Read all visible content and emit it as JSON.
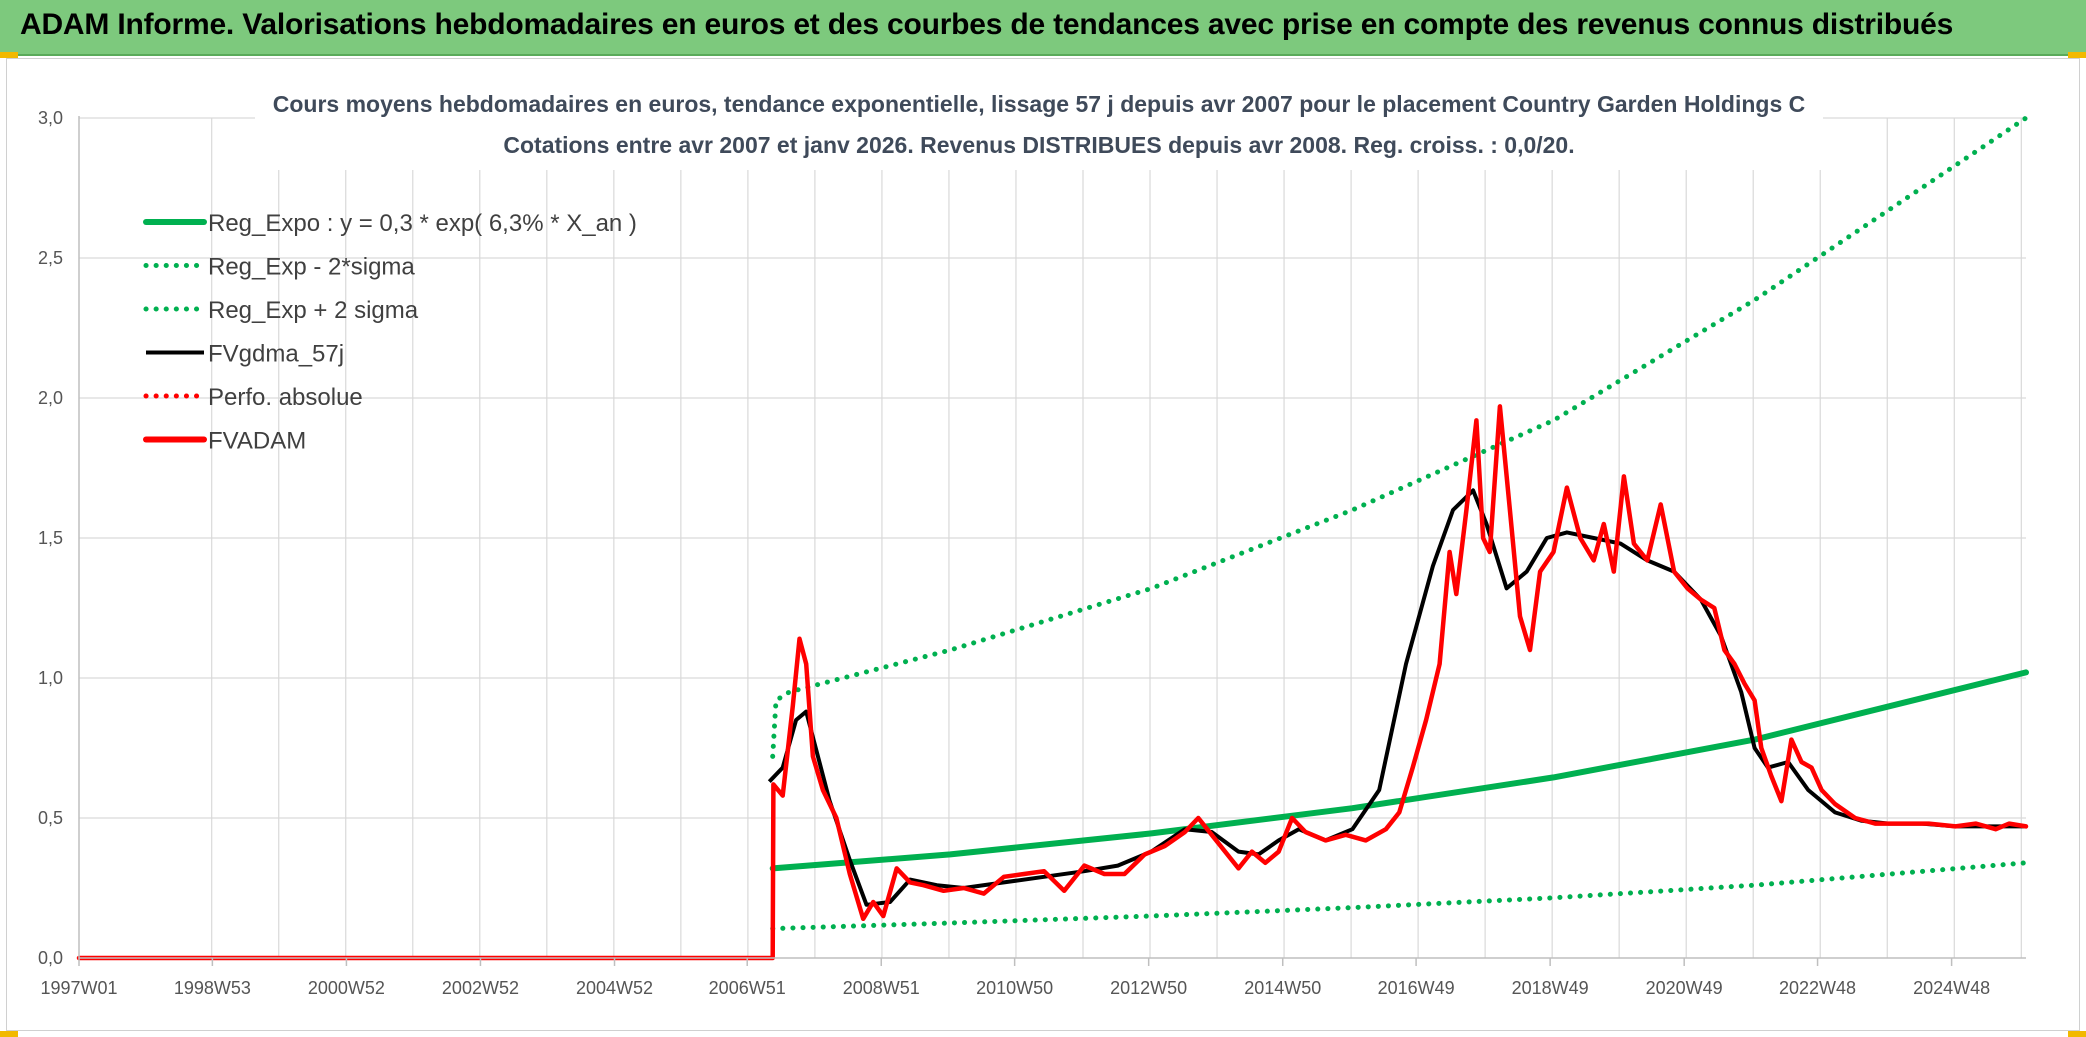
{
  "banner": {
    "title": "ADAM Informe. Valorisations hebdomadaires en euros et des courbes de tendances avec prise en compte des revenus connus distribués"
  },
  "colors": {
    "banner": "#7dc97d",
    "green": "#00b050",
    "red": "#ff0000",
    "black": "#000000",
    "grid": "#d9d9d9",
    "corner": "#f2b900"
  },
  "chart_data": {
    "type": "line",
    "title": "Cours moyens hebdomadaires en euros, tendance exponentielle, lissage 57 j depuis avr 2007 pour le placement Country Garden Holdings C",
    "subtitle": "Cotations entre avr 2007 et janv 2026. Revenus DISTRIBUES depuis avr 2008. Reg. croiss. : 0,0/20.",
    "xlabel": "",
    "ylabel": "",
    "ylim": [
      0,
      3.0
    ],
    "xlim": [
      1997.0,
      2026.05
    ],
    "yticks": [
      "0,0",
      "0,5",
      "1,0",
      "1,5",
      "2,0",
      "2,5",
      "3,0"
    ],
    "xticks": [
      {
        "label": "1997W01",
        "x": 1997.0
      },
      {
        "label": "1998W53",
        "x": 1998.99
      },
      {
        "label": "2000W52",
        "x": 2000.99
      },
      {
        "label": "2002W52",
        "x": 2002.99
      },
      {
        "label": "2004W52",
        "x": 2004.99
      },
      {
        "label": "2006W51",
        "x": 2006.97
      },
      {
        "label": "2008W51",
        "x": 2008.97
      },
      {
        "label": "2010W50",
        "x": 2010.96
      },
      {
        "label": "2012W50",
        "x": 2012.96
      },
      {
        "label": "2014W50",
        "x": 2014.96
      },
      {
        "label": "2016W49",
        "x": 2016.95
      },
      {
        "label": "2018W49",
        "x": 2018.95
      },
      {
        "label": "2020W49",
        "x": 2020.95
      },
      {
        "label": "2022W48",
        "x": 2022.94
      },
      {
        "label": "2024W48",
        "x": 2024.94
      }
    ],
    "grid": true,
    "legend_position": "top-left",
    "series": [
      {
        "name": "Reg_Expo : y = 0,3 * exp( 6,3% *  X_an )",
        "style": "solid-thick",
        "color": "#00b050",
        "x": [
          2007.35,
          2010,
          2013,
          2016,
          2019,
          2022,
          2026.05
        ],
        "y": [
          0.32,
          0.37,
          0.445,
          0.535,
          0.645,
          0.78,
          1.02
        ]
      },
      {
        "name": "Reg_Exp - 2*sigma",
        "style": "dotted",
        "color": "#00b050",
        "x": [
          2007.35,
          2010,
          2013,
          2016,
          2019,
          2022,
          2026.05
        ],
        "y": [
          0.105,
          0.125,
          0.15,
          0.18,
          0.215,
          0.26,
          0.34
        ]
      },
      {
        "name": "Reg_Exp + 2 sigma",
        "style": "dotted",
        "color": "#00b050",
        "x": [
          2007.35,
          2007.4,
          2007.6,
          2010,
          2013,
          2016,
          2019,
          2022,
          2026.05
        ],
        "y": [
          0.72,
          0.92,
          0.95,
          1.1,
          1.32,
          1.6,
          1.92,
          2.35,
          3.0
        ]
      },
      {
        "name": "FVgdma_57j",
        "style": "solid",
        "color": "#000000",
        "x": [
          2007.3,
          2007.5,
          2007.7,
          2007.85,
          2008.2,
          2008.5,
          2008.75,
          2009.1,
          2009.4,
          2009.8,
          2010.2,
          2010.8,
          2011.4,
          2012.0,
          2012.5,
          2013.0,
          2013.5,
          2013.9,
          2014.3,
          2014.6,
          2014.9,
          2015.2,
          2015.6,
          2016.0,
          2016.4,
          2016.8,
          2017.2,
          2017.5,
          2017.8,
          2018.0,
          2018.3,
          2018.6,
          2018.9,
          2019.2,
          2019.6,
          2020.0,
          2020.4,
          2020.8,
          2021.2,
          2021.5,
          2021.8,
          2022.0,
          2022.2,
          2022.5,
          2022.8,
          2023.2,
          2023.6,
          2024.0,
          2024.5,
          2025.0,
          2025.5,
          2026.05
        ],
        "y": [
          0.63,
          0.68,
          0.85,
          0.88,
          0.56,
          0.35,
          0.19,
          0.2,
          0.28,
          0.26,
          0.25,
          0.27,
          0.29,
          0.31,
          0.33,
          0.38,
          0.46,
          0.45,
          0.38,
          0.37,
          0.42,
          0.46,
          0.42,
          0.46,
          0.6,
          1.05,
          1.4,
          1.6,
          1.67,
          1.55,
          1.32,
          1.38,
          1.5,
          1.52,
          1.5,
          1.48,
          1.42,
          1.38,
          1.28,
          1.15,
          0.95,
          0.75,
          0.68,
          0.7,
          0.6,
          0.52,
          0.49,
          0.48,
          0.48,
          0.47,
          0.47,
          0.47
        ]
      },
      {
        "name": "Perfo. absolue",
        "style": "dotted",
        "color": "#ff0000",
        "x": [],
        "y": []
      },
      {
        "name": "FVADAM",
        "style": "solid-thick",
        "color": "#ff0000",
        "x": [
          1997.0,
          2007.35,
          2007.36,
          2007.5,
          2007.65,
          2007.75,
          2007.85,
          2007.95,
          2008.1,
          2008.3,
          2008.5,
          2008.7,
          2008.85,
          2009.0,
          2009.2,
          2009.4,
          2009.6,
          2009.9,
          2010.2,
          2010.5,
          2010.8,
          2011.1,
          2011.4,
          2011.7,
          2012.0,
          2012.3,
          2012.6,
          2012.9,
          2013.2,
          2013.5,
          2013.7,
          2013.9,
          2014.1,
          2014.3,
          2014.5,
          2014.7,
          2014.9,
          2015.1,
          2015.3,
          2015.6,
          2015.9,
          2016.2,
          2016.5,
          2016.7,
          2016.9,
          2017.1,
          2017.3,
          2017.45,
          2017.55,
          2017.7,
          2017.85,
          2017.95,
          2018.05,
          2018.2,
          2018.35,
          2018.5,
          2018.65,
          2018.8,
          2019.0,
          2019.2,
          2019.4,
          2019.6,
          2019.75,
          2019.9,
          2020.05,
          2020.2,
          2020.4,
          2020.6,
          2020.8,
          2021.0,
          2021.2,
          2021.4,
          2021.55,
          2021.7,
          2021.85,
          2022.0,
          2022.1,
          2022.25,
          2022.4,
          2022.55,
          2022.7,
          2022.85,
          2023.0,
          2023.2,
          2023.5,
          2023.8,
          2024.2,
          2024.6,
          2025.0,
          2025.3,
          2025.6,
          2025.8,
          2026.05
        ],
        "y": [
          0.0,
          0.0,
          0.62,
          0.58,
          0.9,
          1.14,
          1.05,
          0.72,
          0.6,
          0.5,
          0.3,
          0.14,
          0.2,
          0.15,
          0.32,
          0.27,
          0.26,
          0.24,
          0.25,
          0.23,
          0.29,
          0.3,
          0.31,
          0.24,
          0.33,
          0.3,
          0.3,
          0.37,
          0.4,
          0.45,
          0.5,
          0.44,
          0.38,
          0.32,
          0.38,
          0.34,
          0.38,
          0.5,
          0.45,
          0.42,
          0.44,
          0.42,
          0.46,
          0.52,
          0.68,
          0.85,
          1.05,
          1.45,
          1.3,
          1.6,
          1.92,
          1.5,
          1.45,
          1.97,
          1.6,
          1.22,
          1.1,
          1.38,
          1.45,
          1.68,
          1.5,
          1.42,
          1.55,
          1.38,
          1.72,
          1.48,
          1.42,
          1.62,
          1.38,
          1.32,
          1.28,
          1.25,
          1.1,
          1.05,
          0.98,
          0.92,
          0.75,
          0.65,
          0.56,
          0.78,
          0.7,
          0.68,
          0.6,
          0.55,
          0.5,
          0.48,
          0.48,
          0.48,
          0.47,
          0.48,
          0.46,
          0.48,
          0.47
        ]
      }
    ]
  }
}
